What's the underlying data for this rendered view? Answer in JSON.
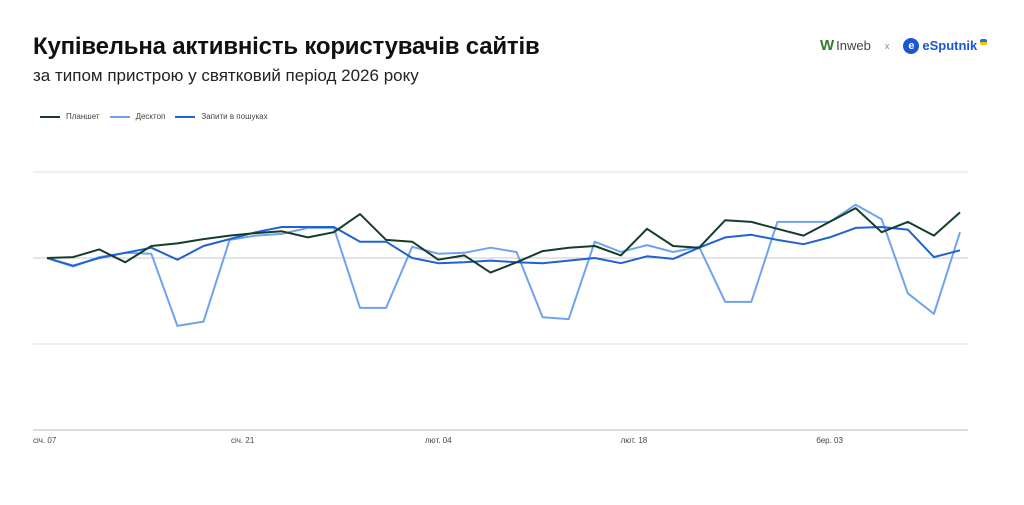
{
  "header": {
    "title": "Купівельна активність користувачів сайтів",
    "subtitle": "за типом пристрою у святковий період 2026 року",
    "logo_inweb": "Inweb",
    "logo_separator": "x",
    "logo_esputnik": "eSputnik"
  },
  "chart_data": {
    "type": "line",
    "title": "Купівельна активність користувачів сайтів",
    "xlabel": "",
    "ylabel": "",
    "ylim": [
      -200,
      100
    ],
    "grid": true,
    "gridlines": [
      100,
      0,
      -100,
      -200
    ],
    "legend_position": "top-left",
    "x_ticks": [
      {
        "index": 0,
        "label": "січ. 07"
      },
      {
        "index": 7.5,
        "label": "січ. 21"
      },
      {
        "index": 15,
        "label": "лют. 04"
      },
      {
        "index": 22.5,
        "label": "лют. 18"
      },
      {
        "index": 30,
        "label": "бер. 03"
      }
    ],
    "series": [
      {
        "name": "Планшет",
        "color": "#163d2a",
        "values": [
          0,
          1,
          10,
          -5,
          14,
          17,
          22,
          26,
          29,
          31,
          24,
          30,
          51,
          21,
          19,
          -2,
          3,
          -17,
          -5,
          8,
          12,
          14,
          3,
          34,
          14,
          12,
          44,
          42,
          34,
          26,
          42,
          58,
          30,
          42,
          26,
          53
        ]
      },
      {
        "name": "Десктоп",
        "color": "#6fa3ef",
        "values": [
          0,
          -10,
          1,
          6,
          5,
          -79,
          -74,
          21,
          26,
          28,
          35,
          35,
          -58,
          -58,
          13,
          5,
          6,
          12,
          7,
          -69,
          -71,
          19,
          7,
          15,
          7,
          13,
          -51,
          -51,
          42,
          42,
          42,
          62,
          45,
          -41,
          -65,
          30
        ]
      },
      {
        "name": "Запити в пошуках",
        "color": "#1f62d4",
        "values": [
          0,
          -9,
          0,
          6,
          12,
          -2,
          14,
          22,
          30,
          36,
          36,
          36,
          19,
          19,
          0,
          -6,
          -5,
          -3,
          -5,
          -6,
          -3,
          0,
          -6,
          2,
          -1,
          12,
          24,
          27,
          21,
          16,
          24,
          35,
          36,
          33,
          1,
          9
        ]
      }
    ]
  }
}
